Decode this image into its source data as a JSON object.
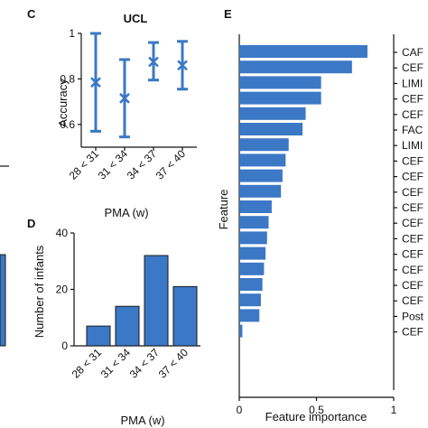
{
  "colors": {
    "bar": "#3b78c6",
    "bar_edge": "#1a1a1a",
    "error": "#3b78c6",
    "axis": "#111111"
  },
  "chart_data": [
    {
      "panel": "C",
      "type": "scatter",
      "title": "UCL",
      "xlabel": "PMA (w)",
      "ylabel": "Accuracy",
      "categories": [
        "28 < 31",
        "31 < 34",
        "34 < 37",
        "37 < 40"
      ],
      "values": [
        0.785,
        0.715,
        0.875,
        0.86
      ],
      "error_low": [
        0.57,
        0.545,
        0.795,
        0.755
      ],
      "error_high": [
        1.0,
        0.885,
        0.96,
        0.965
      ],
      "ylim": [
        0.5,
        1.0
      ],
      "yticks": [
        "0.6",
        "0.8",
        "1"
      ]
    },
    {
      "panel": "D",
      "type": "bar",
      "title": "",
      "xlabel": "PMA (w)",
      "ylabel": "Number of infants",
      "categories": [
        "28 < 31",
        "31 < 34",
        "34 < 37",
        "37 < 40"
      ],
      "values": [
        7,
        14,
        32,
        21
      ],
      "ylim": [
        0,
        40
      ],
      "yticks": [
        "0",
        "20",
        "40"
      ]
    },
    {
      "panel": "E",
      "type": "bar",
      "orientation": "horizontal",
      "title": "",
      "xlabel": "Feature importance",
      "ylabel": "Feature",
      "categories": [
        "CAF",
        "CEF",
        "LIMI",
        "CEF",
        "CEF",
        "FAC",
        "LIMI",
        "CEF",
        "CEF",
        "CEF",
        "CEF",
        "CEF",
        "CEF",
        "CEF",
        "CEF",
        "CEF",
        "CEF",
        "Post",
        "CEF"
      ],
      "values": [
        0.83,
        0.73,
        0.53,
        0.53,
        0.43,
        0.41,
        0.32,
        0.3,
        0.28,
        0.27,
        0.21,
        0.19,
        0.18,
        0.17,
        0.16,
        0.15,
        0.14,
        0.13,
        0.02
      ],
      "xlim": [
        0,
        1
      ],
      "xticks": [
        "0",
        "0.5",
        "1"
      ]
    }
  ],
  "panel_b_partial": {
    "bar_value": 32
  }
}
